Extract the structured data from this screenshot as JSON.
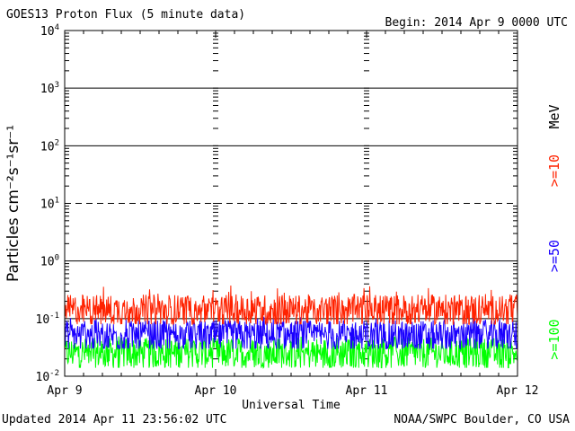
{
  "header": {
    "title": "GOES13 Proton Flux (5 minute data)",
    "begin": "Begin: 2014 Apr 9 0000 UTC"
  },
  "footer": {
    "updated": "Updated 2014 Apr 11 23:56:02 UTC",
    "credit": "NOAA/SWPC Boulder, CO USA"
  },
  "chart_data": {
    "type": "line",
    "xlabel": "Universal Time",
    "ylabel": "Particles cm⁻²s⁻¹sr⁻¹",
    "yscale": "log",
    "ylim": [
      0.01,
      10000
    ],
    "y_tick_labels": [
      {
        "base": "10",
        "exp": "-2",
        "value": 0.01
      },
      {
        "base": "10",
        "exp": "-1",
        "value": 0.1
      },
      {
        "base": "10",
        "exp": "0",
        "value": 1
      },
      {
        "base": "10",
        "exp": "1",
        "value": 10
      },
      {
        "base": "10",
        "exp": "2",
        "value": 100
      },
      {
        "base": "10",
        "exp": "3",
        "value": 1000
      },
      {
        "base": "10",
        "exp": "4",
        "value": 10000
      }
    ],
    "x_tick_labels": [
      "Apr 9",
      "Apr 10",
      "Apr 11",
      "Apr 12"
    ],
    "xlim_days": [
      0,
      3
    ],
    "right_labels": {
      "unit": "MeV"
    },
    "series": [
      {
        "name": ">=10",
        "color": "#ff2200",
        "median": 0.14,
        "min": 0.08,
        "max": 0.38
      },
      {
        "name": ">=50",
        "color": "#1a00ff",
        "median": 0.05,
        "min": 0.03,
        "max": 0.11
      },
      {
        "name": ">=100",
        "color": "#00ff00",
        "median": 0.025,
        "min": 0.014,
        "max": 0.05
      }
    ],
    "grid": true
  }
}
